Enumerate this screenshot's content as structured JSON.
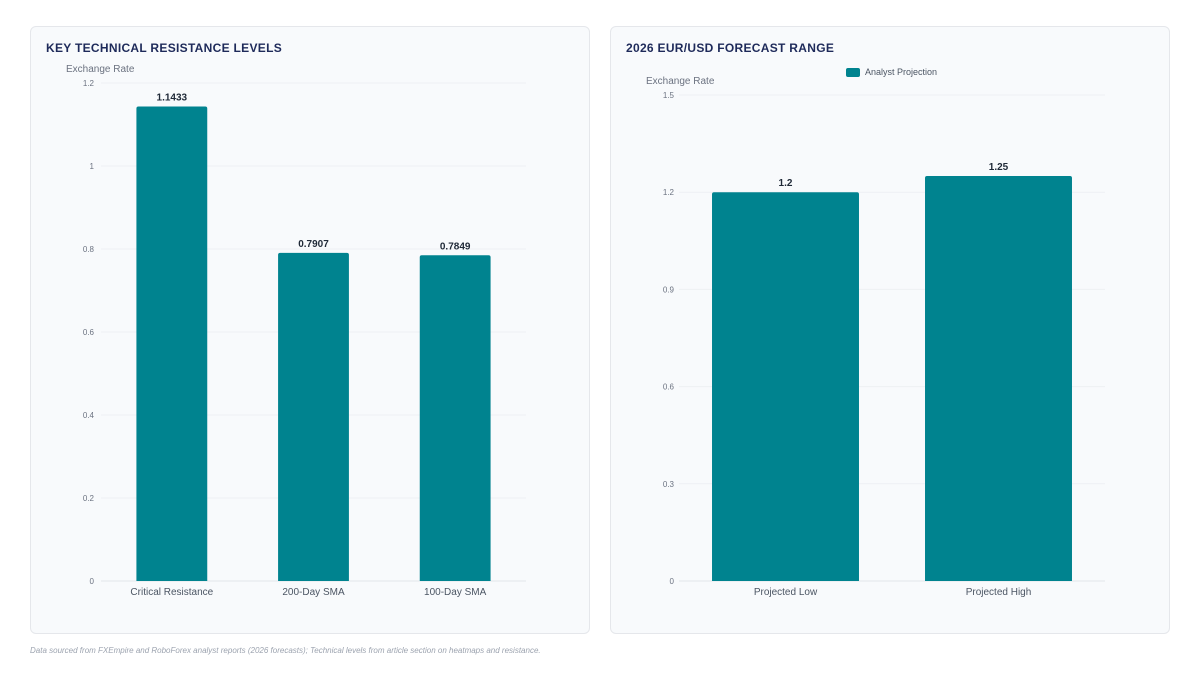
{
  "footnote": "Data sourced from FXEmpire and RoboForex analyst reports (2026 forecasts); Technical levels from article section on heatmaps and resistance.",
  "colors": {
    "bar": "#00838f",
    "grid": "#eef0f3",
    "axis_text": "#6b7280",
    "label": "#1f2937",
    "title": "#1e2a5a"
  },
  "chart_data": [
    {
      "type": "bar",
      "title": "KEY TECHNICAL RESISTANCE LEVELS",
      "ylabel": "Exchange Rate",
      "xlabel": "",
      "categories": [
        "Critical Resistance",
        "200-Day SMA",
        "100-Day SMA"
      ],
      "values": [
        1.1433,
        0.7907,
        0.7849
      ],
      "data_labels": [
        "1.1433",
        "0.7907",
        "0.7849"
      ],
      "ylim": [
        0,
        1.2
      ],
      "yticks": [
        0,
        0.2,
        0.4,
        0.6,
        0.8,
        1,
        1.2
      ],
      "ytick_labels": [
        "0",
        "0.2",
        "0.4",
        "0.6",
        "0.8",
        "1",
        "1.2"
      ],
      "grid": true,
      "legend": null
    },
    {
      "type": "bar",
      "title": "2026 EUR/USD FORECAST RANGE",
      "ylabel": "Exchange Rate",
      "xlabel": "",
      "categories": [
        "Projected Low",
        "Projected High"
      ],
      "series": [
        {
          "name": "Analyst Projection",
          "values": [
            1.2,
            1.25
          ]
        }
      ],
      "data_labels": [
        "1.2",
        "1.25"
      ],
      "ylim": [
        0,
        1.5
      ],
      "yticks": [
        0,
        0.3,
        0.6,
        0.9,
        1.2,
        1.5
      ],
      "ytick_labels": [
        "0",
        "0.3",
        "0.6",
        "0.9",
        "1.2",
        "1.5"
      ],
      "grid": true,
      "legend": "top-center"
    }
  ]
}
